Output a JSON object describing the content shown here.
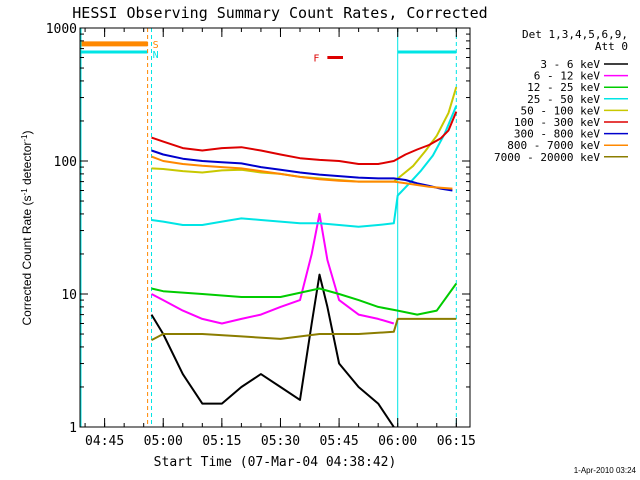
{
  "chart_data": {
    "type": "line",
    "title": "HESSI Observing Summary Count Rates, Corrected",
    "xlabel": "Start Time (07-Mar-04 04:38:42)",
    "ylabel_main": "Corrected Count Rate (s",
    "ylabel_sup1": "-1",
    "ylabel_mid": " detector",
    "ylabel_sup2": "-1",
    "ylabel_end": ")",
    "yscale": "log",
    "ylim": [
      1,
      1000
    ],
    "xlim": [
      "04:38:42",
      "06:18:30"
    ],
    "y_ticks": [
      {
        "value": 1,
        "label": "1"
      },
      {
        "value": 10,
        "label": "10"
      },
      {
        "value": 100,
        "label": "100"
      },
      {
        "value": 1000,
        "label": "1000"
      }
    ],
    "x_ticks": [
      {
        "value": "04:45",
        "label": "04:45"
      },
      {
        "value": "05:00",
        "label": "05:00"
      },
      {
        "value": "05:15",
        "label": "05:15"
      },
      {
        "value": "05:30",
        "label": "05:30"
      },
      {
        "value": "05:45",
        "label": "05:45"
      },
      {
        "value": "06:00",
        "label": "06:00"
      },
      {
        "value": "06:15",
        "label": "06:15"
      }
    ],
    "legend_header": [
      "Det 1,3,4,5,6,9,",
      "Att 0"
    ],
    "legend_placement": "right",
    "flag_labels": {
      "saa": "S",
      "night": "N",
      "flare": "F"
    },
    "flags": {
      "saa": [
        "04:38:42",
        "04:56:00"
      ],
      "night": [
        [
          "04:38:42",
          "04:56:00"
        ],
        [
          "06:00:00",
          "06:15:00"
        ]
      ],
      "flare": [
        "05:42:00",
        "05:46:00"
      ]
    },
    "gaps": [
      [
        "04:56:00",
        "04:57:00"
      ],
      [
        "06:00:00",
        "06:15:00"
      ]
    ],
    "series": [
      {
        "name": "3 - 6 keV",
        "color": "#000000",
        "x": [
          "04:57",
          "05:00",
          "05:05",
          "05:10",
          "05:15",
          "05:20",
          "05:25",
          "05:30",
          "05:35",
          "05:38",
          "05:40",
          "05:42",
          "05:45",
          "05:50",
          "05:55",
          "05:59"
        ],
        "y": [
          7,
          5,
          2.5,
          1.5,
          1.5,
          2,
          2.5,
          2,
          1.6,
          6,
          14,
          8,
          3,
          2,
          1.5,
          1
        ]
      },
      {
        "name": "6 - 12 keV",
        "color": "#ff00ff",
        "x": [
          "04:57",
          "05:00",
          "05:05",
          "05:10",
          "05:15",
          "05:20",
          "05:25",
          "05:30",
          "05:35",
          "05:38",
          "05:40",
          "05:42",
          "05:45",
          "05:50",
          "05:55",
          "05:59"
        ],
        "y": [
          10,
          9,
          7.5,
          6.5,
          6,
          6.5,
          7,
          8,
          9,
          20,
          40,
          18,
          9,
          7,
          6.5,
          6
        ]
      },
      {
        "name": "12 - 25 keV",
        "color": "#00cc00",
        "x": [
          "04:57",
          "05:00",
          "05:10",
          "05:20",
          "05:30",
          "05:40",
          "05:45",
          "05:50",
          "05:55",
          "06:00",
          "06:05",
          "06:10",
          "06:15"
        ],
        "y": [
          11,
          10.5,
          10,
          9.5,
          9.5,
          11,
          10,
          9,
          8,
          7.5,
          7,
          7.5,
          12
        ]
      },
      {
        "name": "25 - 50 keV",
        "color": "#00e5e5",
        "x": [
          "04:57",
          "05:00",
          "05:05",
          "05:10",
          "05:15",
          "05:20",
          "05:25",
          "05:30",
          "05:35",
          "05:40",
          "05:45",
          "05:50",
          "05:55",
          "05:59",
          "06:00",
          "06:03",
          "06:06",
          "06:09",
          "06:12",
          "06:15"
        ],
        "y": [
          36,
          35,
          33,
          33,
          35,
          37,
          36,
          35,
          34,
          34,
          33,
          32,
          33,
          34,
          55,
          68,
          85,
          110,
          160,
          260
        ]
      },
      {
        "name": "50 - 100 keV",
        "color": "#c8c800",
        "x": [
          "04:57",
          "05:00",
          "05:05",
          "05:10",
          "05:15",
          "05:20",
          "05:25",
          "05:30",
          "05:35",
          "05:40",
          "05:45",
          "05:50",
          "05:55",
          "05:59",
          "06:01",
          "06:04",
          "06:07",
          "06:10",
          "06:13",
          "06:15"
        ],
        "y": [
          88,
          87,
          84,
          82,
          85,
          86,
          82,
          80,
          76,
          74,
          72,
          70,
          70,
          70,
          78,
          92,
          118,
          155,
          230,
          360
        ]
      },
      {
        "name": "100 - 300 keV",
        "color": "#dd0000",
        "x": [
          "04:57",
          "05:00",
          "05:05",
          "05:10",
          "05:15",
          "05:20",
          "05:25",
          "05:30",
          "05:35",
          "05:40",
          "05:45",
          "05:50",
          "05:55",
          "05:59",
          "06:02",
          "06:05",
          "06:08",
          "06:11",
          "06:13",
          "06:15"
        ],
        "y": [
          150,
          140,
          125,
          120,
          125,
          127,
          120,
          112,
          105,
          102,
          100,
          95,
          95,
          100,
          112,
          122,
          132,
          148,
          170,
          235
        ]
      },
      {
        "name": "300 - 800 keV",
        "color": "#0000cc",
        "x": [
          "04:57",
          "05:00",
          "05:05",
          "05:10",
          "05:15",
          "05:20",
          "05:25",
          "05:30",
          "05:35",
          "05:40",
          "05:45",
          "05:50",
          "05:55",
          "05:59",
          "06:02",
          "06:05",
          "06:08",
          "06:11",
          "06:14"
        ],
        "y": [
          120,
          112,
          104,
          100,
          98,
          96,
          90,
          86,
          82,
          79,
          77,
          75,
          74,
          74,
          72,
          68,
          65,
          62,
          60
        ]
      },
      {
        "name": "800 - 7000 keV",
        "color": "#ff8800",
        "x": [
          "04:57",
          "05:00",
          "05:05",
          "05:10",
          "05:15",
          "05:20",
          "05:25",
          "05:30",
          "05:35",
          "05:40",
          "05:45",
          "05:50",
          "05:55",
          "05:59",
          "06:02",
          "06:05",
          "06:08",
          "06:11",
          "06:14"
        ],
        "y": [
          108,
          100,
          95,
          92,
          90,
          88,
          84,
          80,
          76,
          73,
          71,
          70,
          70,
          70,
          68,
          66,
          64,
          63,
          62
        ]
      },
      {
        "name": "7000 - 20000 keV",
        "color": "#8b7d00",
        "x": [
          "04:57",
          "05:00",
          "05:10",
          "05:20",
          "05:30",
          "05:40",
          "05:50",
          "05:59",
          "06:00",
          "06:10",
          "06:15"
        ],
        "y": [
          4.5,
          5,
          5,
          4.8,
          4.6,
          5,
          5,
          5.2,
          6.5,
          6.5,
          6.5
        ]
      }
    ]
  },
  "footer": {
    "date": "1-Apr-2010 03:24"
  }
}
